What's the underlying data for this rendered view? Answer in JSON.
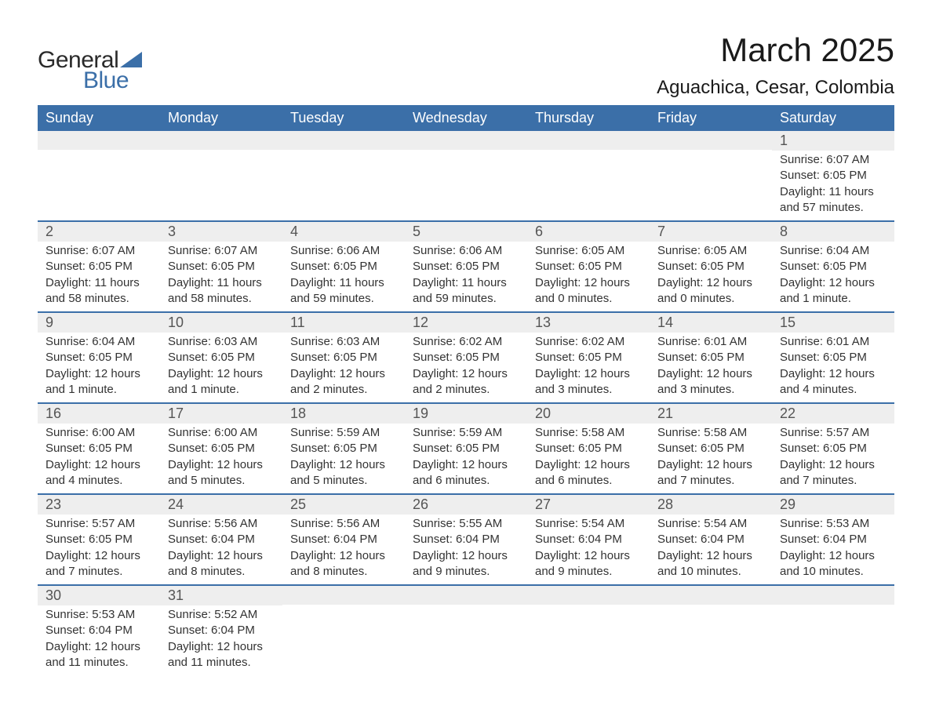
{
  "logo": {
    "word1": "General",
    "word2": "Blue",
    "sail_color": "#3b6fa8",
    "text_dark": "#2a2a2a"
  },
  "header": {
    "title": "March 2025",
    "location": "Aguachica, Cesar, Colombia"
  },
  "colors": {
    "header_bg": "#3b6fa8",
    "header_fg": "#ffffff",
    "row_divider": "#3b6fa8",
    "daynum_bg": "#eeeeee",
    "text": "#333333",
    "page_bg": "#ffffff"
  },
  "typography": {
    "title_fontsize": 42,
    "location_fontsize": 24,
    "weekday_fontsize": 18,
    "daynum_fontsize": 18,
    "body_fontsize": 15
  },
  "calendar": {
    "weekdays": [
      "Sunday",
      "Monday",
      "Tuesday",
      "Wednesday",
      "Thursday",
      "Friday",
      "Saturday"
    ],
    "weeks": [
      [
        {
          "day": "",
          "sunrise": "",
          "sunset": "",
          "daylight": ""
        },
        {
          "day": "",
          "sunrise": "",
          "sunset": "",
          "daylight": ""
        },
        {
          "day": "",
          "sunrise": "",
          "sunset": "",
          "daylight": ""
        },
        {
          "day": "",
          "sunrise": "",
          "sunset": "",
          "daylight": ""
        },
        {
          "day": "",
          "sunrise": "",
          "sunset": "",
          "daylight": ""
        },
        {
          "day": "",
          "sunrise": "",
          "sunset": "",
          "daylight": ""
        },
        {
          "day": "1",
          "sunrise": "Sunrise: 6:07 AM",
          "sunset": "Sunset: 6:05 PM",
          "daylight": "Daylight: 11 hours and 57 minutes."
        }
      ],
      [
        {
          "day": "2",
          "sunrise": "Sunrise: 6:07 AM",
          "sunset": "Sunset: 6:05 PM",
          "daylight": "Daylight: 11 hours and 58 minutes."
        },
        {
          "day": "3",
          "sunrise": "Sunrise: 6:07 AM",
          "sunset": "Sunset: 6:05 PM",
          "daylight": "Daylight: 11 hours and 58 minutes."
        },
        {
          "day": "4",
          "sunrise": "Sunrise: 6:06 AM",
          "sunset": "Sunset: 6:05 PM",
          "daylight": "Daylight: 11 hours and 59 minutes."
        },
        {
          "day": "5",
          "sunrise": "Sunrise: 6:06 AM",
          "sunset": "Sunset: 6:05 PM",
          "daylight": "Daylight: 11 hours and 59 minutes."
        },
        {
          "day": "6",
          "sunrise": "Sunrise: 6:05 AM",
          "sunset": "Sunset: 6:05 PM",
          "daylight": "Daylight: 12 hours and 0 minutes."
        },
        {
          "day": "7",
          "sunrise": "Sunrise: 6:05 AM",
          "sunset": "Sunset: 6:05 PM",
          "daylight": "Daylight: 12 hours and 0 minutes."
        },
        {
          "day": "8",
          "sunrise": "Sunrise: 6:04 AM",
          "sunset": "Sunset: 6:05 PM",
          "daylight": "Daylight: 12 hours and 1 minute."
        }
      ],
      [
        {
          "day": "9",
          "sunrise": "Sunrise: 6:04 AM",
          "sunset": "Sunset: 6:05 PM",
          "daylight": "Daylight: 12 hours and 1 minute."
        },
        {
          "day": "10",
          "sunrise": "Sunrise: 6:03 AM",
          "sunset": "Sunset: 6:05 PM",
          "daylight": "Daylight: 12 hours and 1 minute."
        },
        {
          "day": "11",
          "sunrise": "Sunrise: 6:03 AM",
          "sunset": "Sunset: 6:05 PM",
          "daylight": "Daylight: 12 hours and 2 minutes."
        },
        {
          "day": "12",
          "sunrise": "Sunrise: 6:02 AM",
          "sunset": "Sunset: 6:05 PM",
          "daylight": "Daylight: 12 hours and 2 minutes."
        },
        {
          "day": "13",
          "sunrise": "Sunrise: 6:02 AM",
          "sunset": "Sunset: 6:05 PM",
          "daylight": "Daylight: 12 hours and 3 minutes."
        },
        {
          "day": "14",
          "sunrise": "Sunrise: 6:01 AM",
          "sunset": "Sunset: 6:05 PM",
          "daylight": "Daylight: 12 hours and 3 minutes."
        },
        {
          "day": "15",
          "sunrise": "Sunrise: 6:01 AM",
          "sunset": "Sunset: 6:05 PM",
          "daylight": "Daylight: 12 hours and 4 minutes."
        }
      ],
      [
        {
          "day": "16",
          "sunrise": "Sunrise: 6:00 AM",
          "sunset": "Sunset: 6:05 PM",
          "daylight": "Daylight: 12 hours and 4 minutes."
        },
        {
          "day": "17",
          "sunrise": "Sunrise: 6:00 AM",
          "sunset": "Sunset: 6:05 PM",
          "daylight": "Daylight: 12 hours and 5 minutes."
        },
        {
          "day": "18",
          "sunrise": "Sunrise: 5:59 AM",
          "sunset": "Sunset: 6:05 PM",
          "daylight": "Daylight: 12 hours and 5 minutes."
        },
        {
          "day": "19",
          "sunrise": "Sunrise: 5:59 AM",
          "sunset": "Sunset: 6:05 PM",
          "daylight": "Daylight: 12 hours and 6 minutes."
        },
        {
          "day": "20",
          "sunrise": "Sunrise: 5:58 AM",
          "sunset": "Sunset: 6:05 PM",
          "daylight": "Daylight: 12 hours and 6 minutes."
        },
        {
          "day": "21",
          "sunrise": "Sunrise: 5:58 AM",
          "sunset": "Sunset: 6:05 PM",
          "daylight": "Daylight: 12 hours and 7 minutes."
        },
        {
          "day": "22",
          "sunrise": "Sunrise: 5:57 AM",
          "sunset": "Sunset: 6:05 PM",
          "daylight": "Daylight: 12 hours and 7 minutes."
        }
      ],
      [
        {
          "day": "23",
          "sunrise": "Sunrise: 5:57 AM",
          "sunset": "Sunset: 6:05 PM",
          "daylight": "Daylight: 12 hours and 7 minutes."
        },
        {
          "day": "24",
          "sunrise": "Sunrise: 5:56 AM",
          "sunset": "Sunset: 6:04 PM",
          "daylight": "Daylight: 12 hours and 8 minutes."
        },
        {
          "day": "25",
          "sunrise": "Sunrise: 5:56 AM",
          "sunset": "Sunset: 6:04 PM",
          "daylight": "Daylight: 12 hours and 8 minutes."
        },
        {
          "day": "26",
          "sunrise": "Sunrise: 5:55 AM",
          "sunset": "Sunset: 6:04 PM",
          "daylight": "Daylight: 12 hours and 9 minutes."
        },
        {
          "day": "27",
          "sunrise": "Sunrise: 5:54 AM",
          "sunset": "Sunset: 6:04 PM",
          "daylight": "Daylight: 12 hours and 9 minutes."
        },
        {
          "day": "28",
          "sunrise": "Sunrise: 5:54 AM",
          "sunset": "Sunset: 6:04 PM",
          "daylight": "Daylight: 12 hours and 10 minutes."
        },
        {
          "day": "29",
          "sunrise": "Sunrise: 5:53 AM",
          "sunset": "Sunset: 6:04 PM",
          "daylight": "Daylight: 12 hours and 10 minutes."
        }
      ],
      [
        {
          "day": "30",
          "sunrise": "Sunrise: 5:53 AM",
          "sunset": "Sunset: 6:04 PM",
          "daylight": "Daylight: 12 hours and 11 minutes."
        },
        {
          "day": "31",
          "sunrise": "Sunrise: 5:52 AM",
          "sunset": "Sunset: 6:04 PM",
          "daylight": "Daylight: 12 hours and 11 minutes."
        },
        {
          "day": "",
          "sunrise": "",
          "sunset": "",
          "daylight": ""
        },
        {
          "day": "",
          "sunrise": "",
          "sunset": "",
          "daylight": ""
        },
        {
          "day": "",
          "sunrise": "",
          "sunset": "",
          "daylight": ""
        },
        {
          "day": "",
          "sunrise": "",
          "sunset": "",
          "daylight": ""
        },
        {
          "day": "",
          "sunrise": "",
          "sunset": "",
          "daylight": ""
        }
      ]
    ]
  }
}
